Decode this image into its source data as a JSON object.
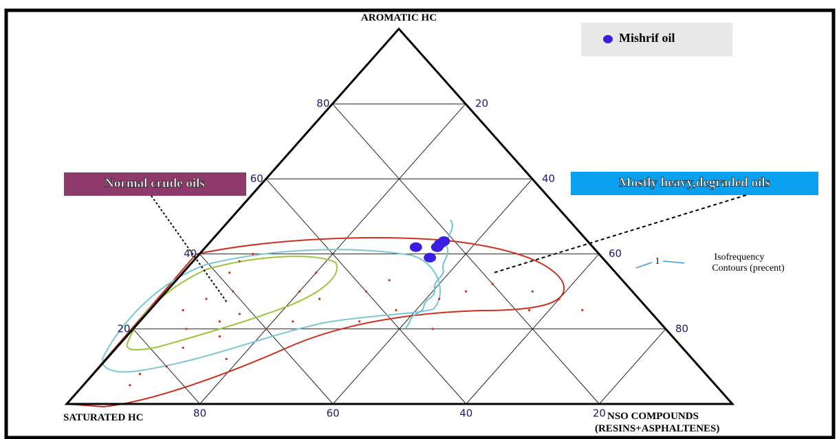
{
  "chart_data": {
    "type": "ternary",
    "title": "AROMATIC HC",
    "left_label": "SATURATED HC",
    "right_label": [
      "NSO COMPOUNDS",
      "(RESINS+ASPHALTENES)"
    ],
    "aromatic_ticks": [
      20,
      40,
      60,
      80
    ],
    "nso_ticks": [
      20,
      40,
      60,
      80
    ],
    "saturated_ticks": [
      20,
      40,
      60,
      80
    ],
    "grid": true,
    "legend": "top-right",
    "series": [
      {
        "name": "Mishrif oil",
        "color": "#3b1fe0",
        "values": [
          [
            26.6,
            41.8,
            31.6
          ],
          [
            25.9,
            39.0,
            35.1
          ],
          [
            23.4,
            41.8,
            34.8
          ],
          [
            22.5,
            42.7,
            34.8
          ],
          [
            21.6,
            43.4,
            35.0
          ]
        ]
      },
      {
        "color": "#d42a1a",
        "values": [
          [
            70,
            25,
            5
          ],
          [
            65,
            28,
            7
          ],
          [
            72,
            20,
            8
          ],
          [
            60,
            30,
            10
          ],
          [
            58,
            35,
            7
          ],
          [
            55,
            38,
            7
          ],
          [
            62,
            24,
            14
          ],
          [
            68,
            18,
            14
          ],
          [
            75,
            15,
            10
          ],
          [
            80,
            10,
            10
          ],
          [
            85,
            8,
            7
          ],
          [
            88,
            5,
            7
          ],
          [
            50,
            30,
            20
          ],
          [
            45,
            35,
            20
          ],
          [
            48,
            28,
            24
          ],
          [
            55,
            22,
            23
          ],
          [
            40,
            30,
            30
          ],
          [
            35,
            33,
            32
          ],
          [
            38,
            25,
            37
          ],
          [
            30,
            28,
            42
          ],
          [
            25,
            30,
            45
          ],
          [
            20,
            32,
            48
          ],
          [
            15,
            30,
            55
          ],
          [
            18,
            25,
            57
          ],
          [
            12,
            28,
            60
          ],
          [
            10,
            25,
            65
          ],
          [
            60,
            20,
            20
          ],
          [
            52,
            40,
            8
          ],
          [
            66,
            22,
            12
          ],
          [
            45,
            22,
            33
          ],
          [
            35,
            20,
            45
          ],
          [
            70,
            12,
            18
          ]
        ]
      }
    ],
    "annotations": [
      "Normal crude oils",
      "Mostly heavy,degraded oils",
      "1",
      "Isofrequency",
      "Contours (precent)"
    ]
  }
}
